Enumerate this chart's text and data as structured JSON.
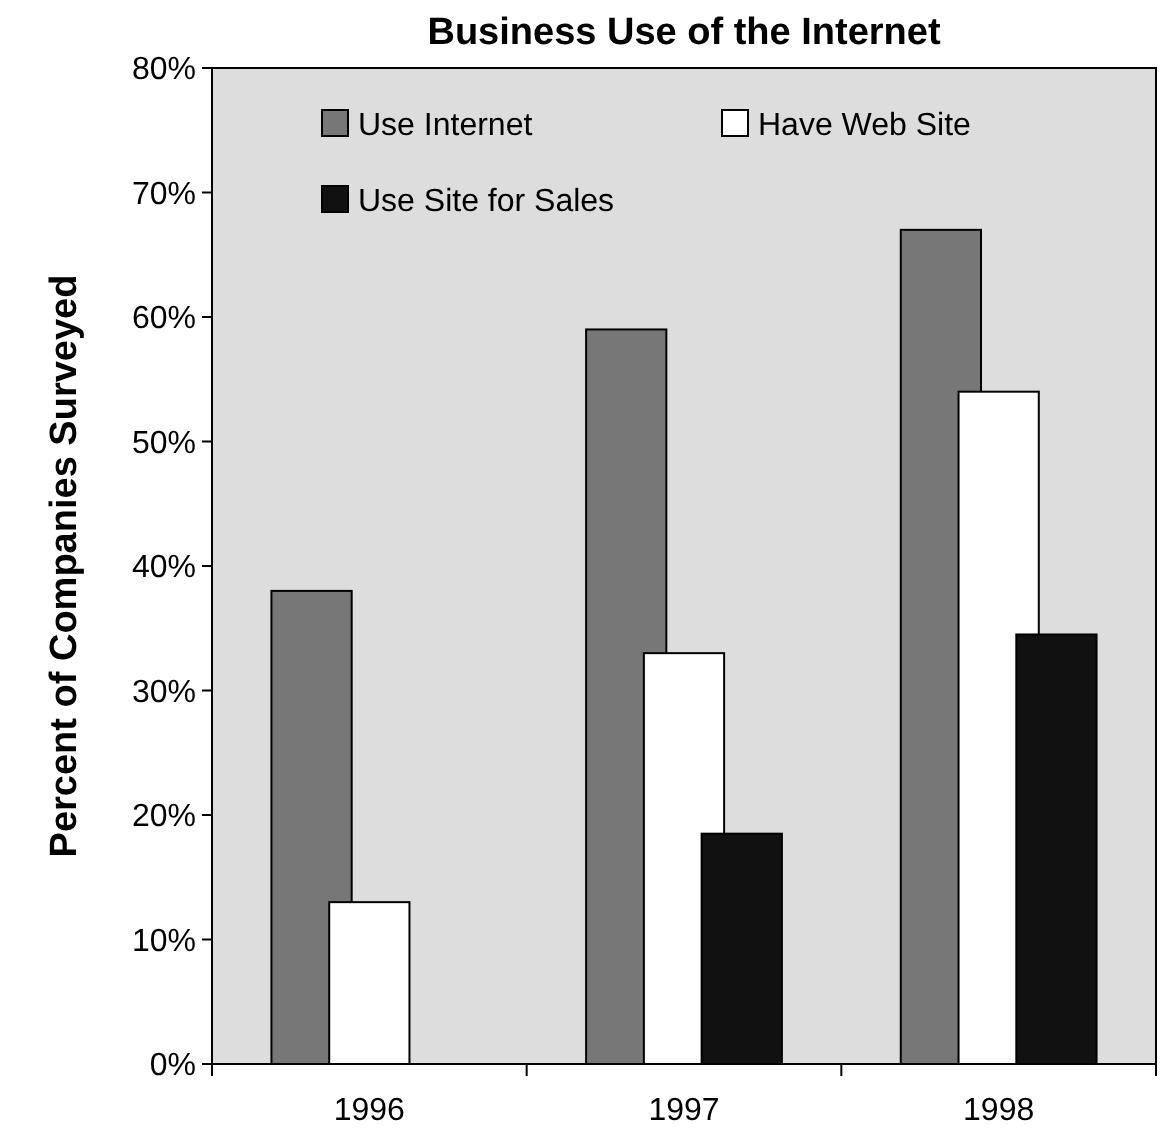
{
  "chart_data": {
    "type": "bar",
    "title": "Business Use of the Internet",
    "ylabel": "Percent of Companies Surveyed",
    "categories": [
      "1996",
      "1997",
      "1998"
    ],
    "series": [
      {
        "name": "Use Internet",
        "color": "#777777",
        "values": [
          38,
          59,
          67
        ]
      },
      {
        "name": "Have Web Site",
        "color": "#ffffff",
        "values": [
          13,
          33,
          54
        ]
      },
      {
        "name": "Use Site for Sales",
        "color": "#111111",
        "values": [
          null,
          18.5,
          34.5
        ]
      }
    ],
    "ylim": [
      0,
      80
    ],
    "yticks": [
      {
        "value": 0,
        "label": "0%"
      },
      {
        "value": 10,
        "label": "10%"
      },
      {
        "value": 20,
        "label": "20%"
      },
      {
        "value": 30,
        "label": "30%"
      },
      {
        "value": 40,
        "label": "40%"
      },
      {
        "value": 50,
        "label": "50%"
      },
      {
        "value": 60,
        "label": "60%"
      },
      {
        "value": 70,
        "label": "70%"
      },
      {
        "value": 80,
        "label": "80%"
      }
    ],
    "grid": false,
    "legend": "top"
  }
}
